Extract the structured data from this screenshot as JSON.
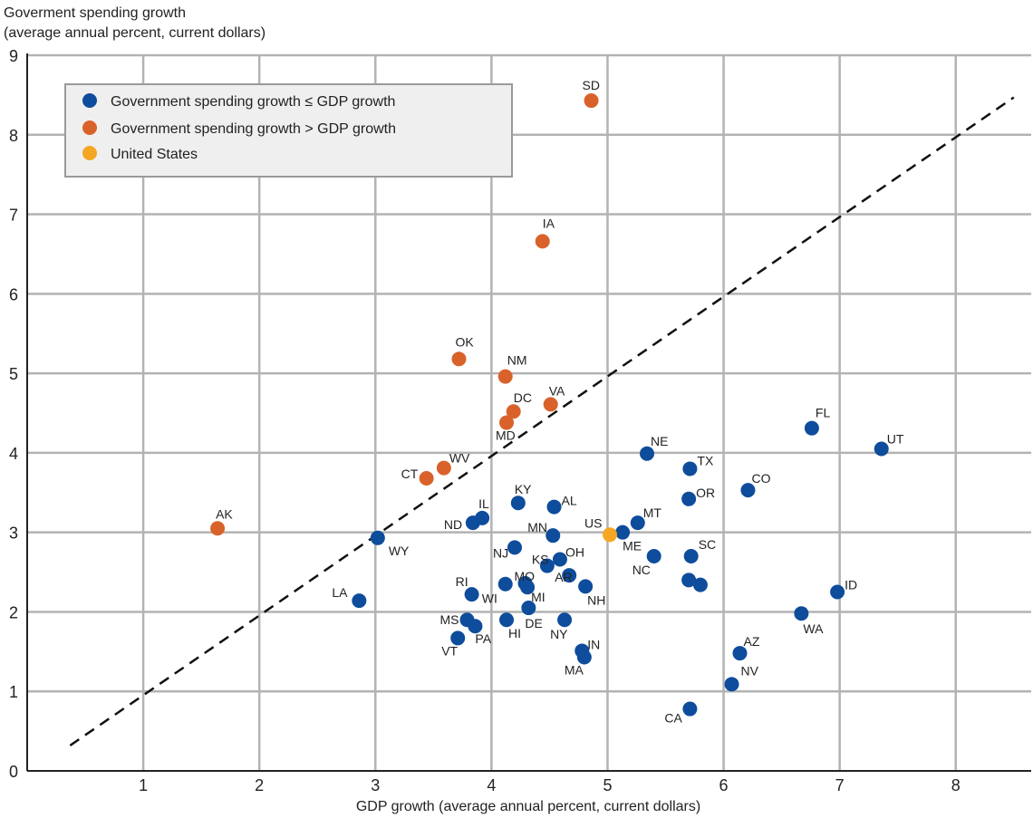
{
  "chart_data": {
    "type": "scatter",
    "title": "",
    "ylabel_lines": [
      "Goverment spending growth",
      "(average annual percent, current dollars)"
    ],
    "xlabel": "GDP growth (average annual percent, current dollars)",
    "xlim": [
      0,
      8.65
    ],
    "ylim": [
      0,
      9
    ],
    "x_ticks": [
      1,
      2,
      3,
      4,
      5,
      6,
      7,
      8
    ],
    "y_ticks": [
      0,
      1,
      2,
      3,
      4,
      5,
      6,
      7,
      8,
      9
    ],
    "grid": true,
    "legend_position": "top-left",
    "reference_line": {
      "style": "dashed",
      "from": [
        0.37,
        0.32
      ],
      "to": [
        8.5,
        8.47
      ]
    },
    "series": [
      {
        "name": "Government spending growth ≤ GDP growth",
        "color": "#0e4c9c",
        "points": [
          {
            "label": "UT",
            "x": 7.36,
            "y": 4.05
          },
          {
            "label": "FL",
            "x": 6.76,
            "y": 4.31
          },
          {
            "label": "ID",
            "x": 6.98,
            "y": 2.25
          },
          {
            "label": "WA",
            "x": 6.67,
            "y": 1.98
          },
          {
            "label": "CO",
            "x": 6.21,
            "y": 3.53
          },
          {
            "label": "AZ",
            "x": 6.14,
            "y": 1.48
          },
          {
            "label": "NV",
            "x": 6.07,
            "y": 1.09
          },
          {
            "label": "TX",
            "x": 5.71,
            "y": 3.8
          },
          {
            "label": "OR",
            "x": 5.7,
            "y": 3.42
          },
          {
            "label": "SC",
            "x": 5.72,
            "y": 2.7
          },
          {
            "label": "",
            "x": 5.7,
            "y": 2.4
          },
          {
            "label": "",
            "x": 5.8,
            "y": 2.34
          },
          {
            "label": "CA",
            "x": 5.71,
            "y": 0.78
          },
          {
            "label": "NE",
            "x": 5.34,
            "y": 3.99
          },
          {
            "label": "MT",
            "x": 5.26,
            "y": 3.12
          },
          {
            "label": "ME",
            "x": 5.13,
            "y": 3.0
          },
          {
            "label": "NC",
            "x": 5.4,
            "y": 2.7
          },
          {
            "label": "IN",
            "x": 4.78,
            "y": 1.51
          },
          {
            "label": "MA",
            "x": 4.8,
            "y": 1.43
          },
          {
            "label": "NH",
            "x": 4.81,
            "y": 2.32
          },
          {
            "label": "AR",
            "x": 4.67,
            "y": 2.46
          },
          {
            "label": "OH",
            "x": 4.59,
            "y": 2.66
          },
          {
            "label": "KS",
            "x": 4.48,
            "y": 2.58
          },
          {
            "label": "MN",
            "x": 4.53,
            "y": 2.96
          },
          {
            "label": "AL",
            "x": 4.54,
            "y": 3.32
          },
          {
            "label": "KY",
            "x": 4.23,
            "y": 3.37
          },
          {
            "label": "NJ",
            "x": 4.2,
            "y": 2.81
          },
          {
            "label": "MO",
            "x": 4.29,
            "y": 2.36
          },
          {
            "label": "MI",
            "x": 4.31,
            "y": 2.31
          },
          {
            "label": "DE",
            "x": 4.32,
            "y": 2.05
          },
          {
            "label": "NY",
            "x": 4.63,
            "y": 1.9
          },
          {
            "label": "WI",
            "x": 4.12,
            "y": 2.35
          },
          {
            "label": "HI",
            "x": 4.13,
            "y": 1.9
          },
          {
            "label": "IL",
            "x": 3.92,
            "y": 3.18
          },
          {
            "label": "ND",
            "x": 3.84,
            "y": 3.12
          },
          {
            "label": "RI",
            "x": 3.83,
            "y": 2.22
          },
          {
            "label": "MS",
            "x": 3.79,
            "y": 1.9
          },
          {
            "label": "PA",
            "x": 3.86,
            "y": 1.82
          },
          {
            "label": "VT",
            "x": 3.71,
            "y": 1.67
          },
          {
            "label": "WY",
            "x": 3.02,
            "y": 2.93
          },
          {
            "label": "LA",
            "x": 2.86,
            "y": 2.14
          }
        ]
      },
      {
        "name": "Government spending growth > GDP growth",
        "color": "#d9622b",
        "points": [
          {
            "label": "SD",
            "x": 4.86,
            "y": 8.43
          },
          {
            "label": "IA",
            "x": 4.44,
            "y": 6.66
          },
          {
            "label": "OK",
            "x": 3.72,
            "y": 5.18
          },
          {
            "label": "NM",
            "x": 4.12,
            "y": 4.96
          },
          {
            "label": "VA",
            "x": 4.51,
            "y": 4.61
          },
          {
            "label": "DC",
            "x": 4.19,
            "y": 4.52
          },
          {
            "label": "MD",
            "x": 4.13,
            "y": 4.38
          },
          {
            "label": "WV",
            "x": 3.59,
            "y": 3.81
          },
          {
            "label": "CT",
            "x": 3.44,
            "y": 3.68
          },
          {
            "label": "AK",
            "x": 1.64,
            "y": 3.05
          }
        ]
      },
      {
        "name": "United States",
        "color": "#f5a623",
        "points": [
          {
            "label": "US",
            "x": 5.02,
            "y": 2.97
          }
        ]
      }
    ]
  }
}
